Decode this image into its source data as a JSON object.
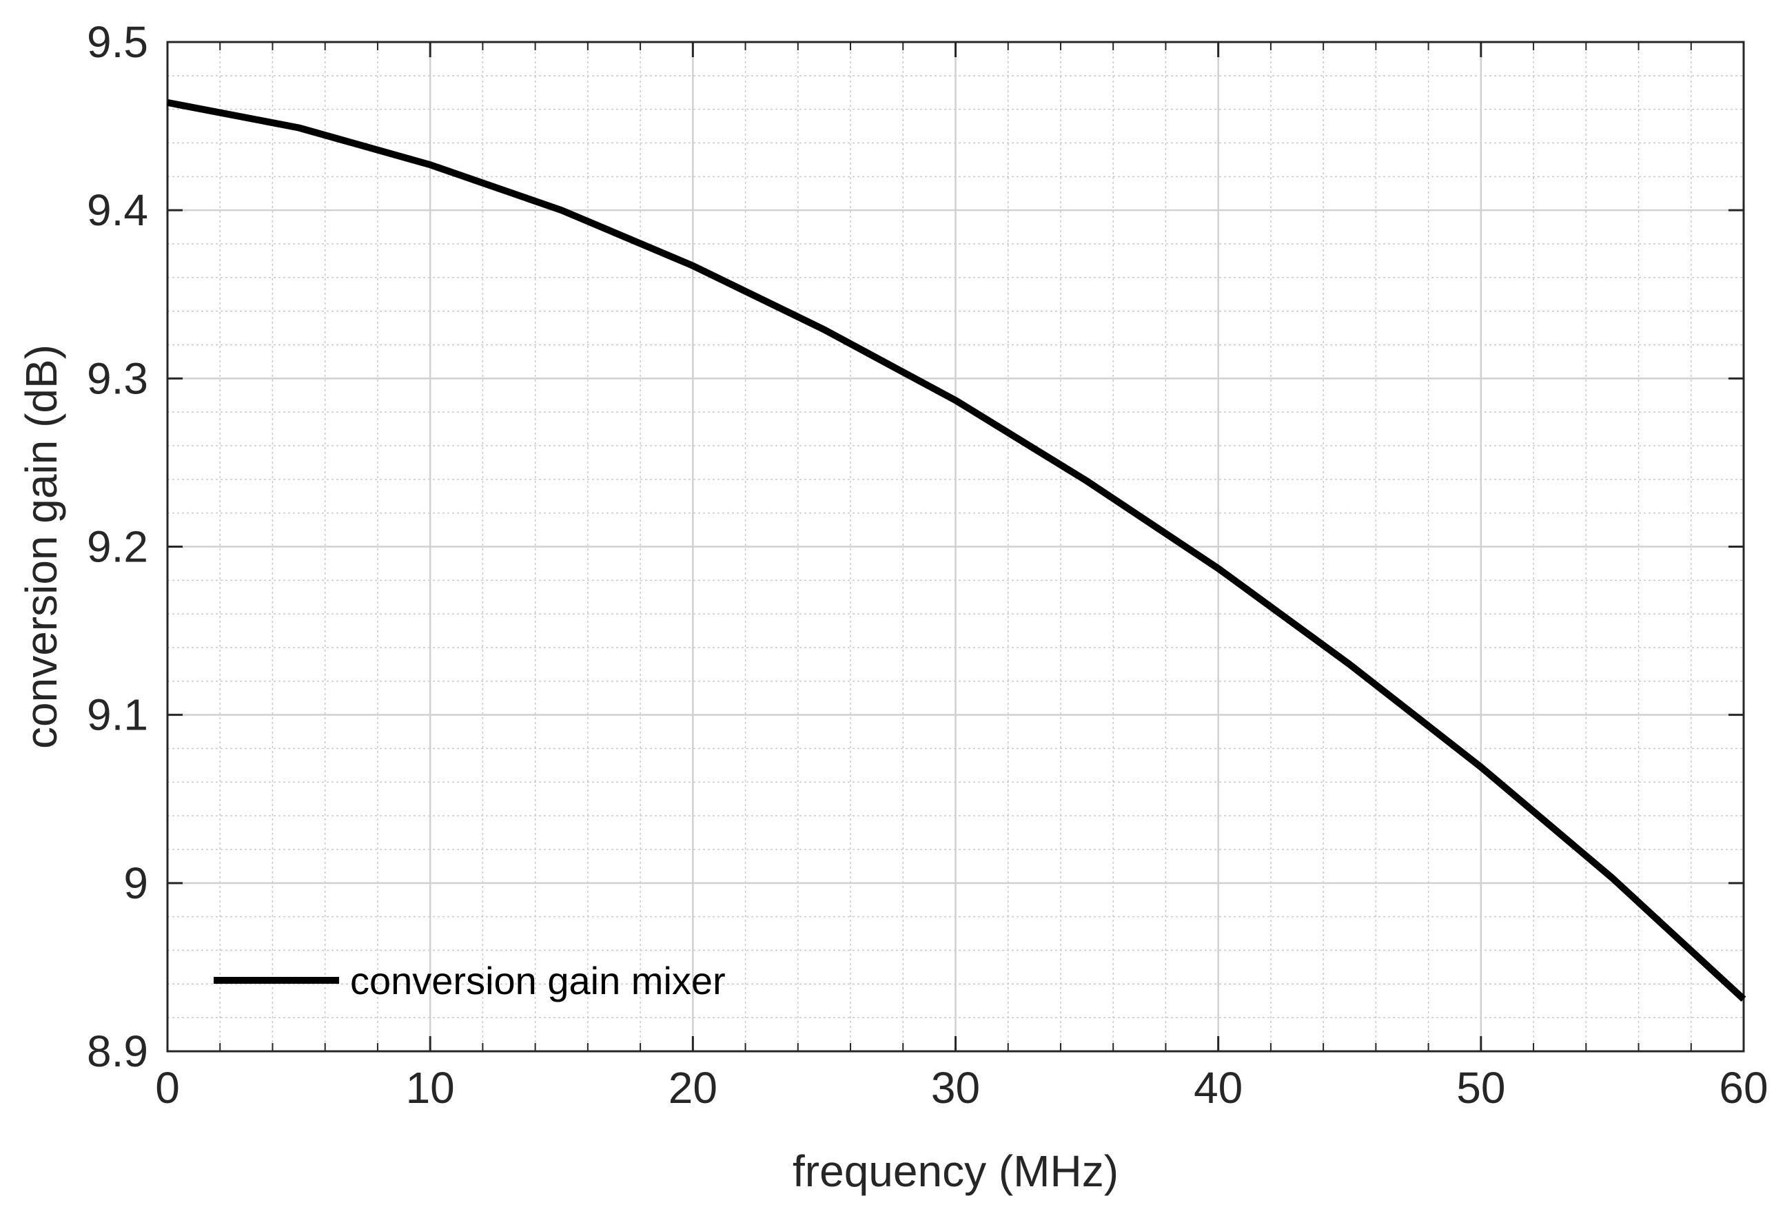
{
  "chart_data": {
    "type": "line",
    "title": "",
    "xlabel": "frequency (MHz)",
    "ylabel": "conversion gain (dB)",
    "xlim": [
      0,
      60
    ],
    "ylim": [
      8.9,
      9.5
    ],
    "xticks": [
      0,
      10,
      20,
      30,
      40,
      50,
      60
    ],
    "xtick_labels": [
      "0",
      "10",
      "20",
      "30",
      "40",
      "50",
      "60"
    ],
    "yticks": [
      8.9,
      9.0,
      9.1,
      9.2,
      9.3,
      9.4,
      9.5
    ],
    "ytick_labels": [
      "8.9",
      "9",
      "9.1",
      "9.2",
      "9.3",
      "9.4",
      "9.5"
    ],
    "grid": true,
    "minor_grid": true,
    "legend_position": "bottom-left",
    "series": [
      {
        "name": "conversion gain mixer",
        "color": "#000000",
        "x": [
          0,
          5,
          10,
          15,
          20,
          25,
          30,
          35,
          40,
          45,
          50,
          55,
          60
        ],
        "y": [
          9.464,
          9.449,
          9.427,
          9.4,
          9.367,
          9.329,
          9.287,
          9.239,
          9.187,
          9.13,
          9.069,
          9.003,
          8.931
        ]
      }
    ]
  }
}
